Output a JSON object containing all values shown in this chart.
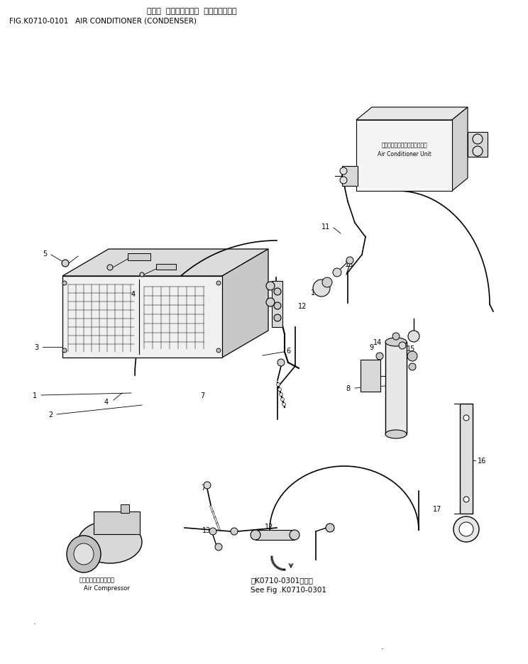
{
  "title_jp": "エアー  コンディショナ  （コンデンサ）",
  "title_en": "FIG.K0710-0101   AIR CONDITIONER (CONDENSER)",
  "bg_color": "#ffffff",
  "fig_width": 7.44,
  "fig_height": 9.37,
  "ac_unit_label1": "エアーコンディショナユニット",
  "ac_unit_label2": "Air Conditioner Unit",
  "compressor_label1": "エアーコンプレッサ・",
  "compressor_label2": "Air Compressor",
  "see_fig_label1": "第K0710-0301図参照",
  "see_fig_label2": "See Fig .K0710-0301"
}
